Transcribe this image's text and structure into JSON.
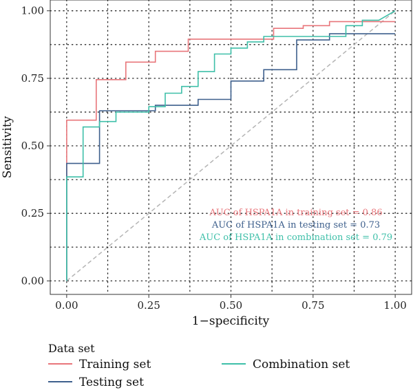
{
  "chart_data": {
    "type": "line",
    "xlabel": "1−specificity",
    "ylabel": "Sensitivity",
    "xlim": [
      -0.05,
      1.05
    ],
    "ylim": [
      -0.05,
      1.04
    ],
    "x_ticks": [
      "0.00",
      "0.25",
      "0.50",
      "0.75",
      "1.00"
    ],
    "y_ticks": [
      "0.00",
      "0.25",
      "0.50",
      "0.75",
      "1.00"
    ],
    "grid": true,
    "reference_line": {
      "from": [
        0,
        0
      ],
      "to": [
        1,
        1
      ],
      "color": "#b4b4b4",
      "style": "dashed"
    },
    "series": [
      {
        "name": "Training set",
        "color": "#e8757a",
        "points": [
          [
            0,
            0
          ],
          [
            0,
            0.595
          ],
          [
            0.09,
            0.595
          ],
          [
            0.09,
            0.745
          ],
          [
            0.18,
            0.745
          ],
          [
            0.18,
            0.81
          ],
          [
            0.27,
            0.81
          ],
          [
            0.27,
            0.85
          ],
          [
            0.37,
            0.85
          ],
          [
            0.37,
            0.895
          ],
          [
            0.63,
            0.895
          ],
          [
            0.63,
            0.935
          ],
          [
            0.72,
            0.935
          ],
          [
            0.72,
            0.945
          ],
          [
            0.8,
            0.945
          ],
          [
            0.8,
            0.96
          ],
          [
            1,
            0.96
          ]
        ]
      },
      {
        "name": "Testing set",
        "color": "#3d5f8c",
        "points": [
          [
            0,
            0
          ],
          [
            0,
            0.435
          ],
          [
            0.1,
            0.435
          ],
          [
            0.1,
            0.63
          ],
          [
            0.27,
            0.63
          ],
          [
            0.27,
            0.65
          ],
          [
            0.4,
            0.65
          ],
          [
            0.4,
            0.672
          ],
          [
            0.5,
            0.672
          ],
          [
            0.5,
            0.74
          ],
          [
            0.6,
            0.74
          ],
          [
            0.6,
            0.782
          ],
          [
            0.7,
            0.782
          ],
          [
            0.7,
            0.892
          ],
          [
            0.8,
            0.892
          ],
          [
            0.8,
            0.915
          ],
          [
            1,
            0.915
          ]
        ]
      },
      {
        "name": "Combination set",
        "color": "#3dbfa8",
        "points": [
          [
            0,
            0
          ],
          [
            0,
            0.385
          ],
          [
            0.05,
            0.385
          ],
          [
            0.05,
            0.57
          ],
          [
            0.1,
            0.57
          ],
          [
            0.1,
            0.59
          ],
          [
            0.15,
            0.59
          ],
          [
            0.15,
            0.625
          ],
          [
            0.25,
            0.625
          ],
          [
            0.25,
            0.645
          ],
          [
            0.3,
            0.645
          ],
          [
            0.3,
            0.695
          ],
          [
            0.35,
            0.695
          ],
          [
            0.35,
            0.72
          ],
          [
            0.4,
            0.72
          ],
          [
            0.4,
            0.775
          ],
          [
            0.45,
            0.775
          ],
          [
            0.45,
            0.84
          ],
          [
            0.5,
            0.84
          ],
          [
            0.5,
            0.862
          ],
          [
            0.55,
            0.862
          ],
          [
            0.55,
            0.885
          ],
          [
            0.6,
            0.885
          ],
          [
            0.6,
            0.905
          ],
          [
            0.65,
            0.905
          ],
          [
            0.85,
            0.905
          ],
          [
            0.85,
            0.945
          ],
          [
            0.9,
            0.945
          ],
          [
            0.9,
            0.965
          ],
          [
            0.95,
            0.965
          ],
          [
            1,
            1
          ]
        ]
      }
    ],
    "annotations": [
      {
        "text": "AUC of HSPA1A in training set =  0.86",
        "color": "#e8757a"
      },
      {
        "text": "AUC of HSPA1A in testing set =  0.73",
        "color": "#3d5f8c"
      },
      {
        "text": "AUC of HSPA1A in combination set =  0.79",
        "color": "#3dbfa8"
      }
    ],
    "legend": {
      "title": "Data set",
      "placement": "bottom-left",
      "entries": [
        {
          "label": "Training set",
          "color": "#e8757a"
        },
        {
          "label": "Testing set",
          "color": "#3d5f8c"
        },
        {
          "label": "Combination set",
          "color": "#3dbfa8"
        }
      ]
    }
  }
}
